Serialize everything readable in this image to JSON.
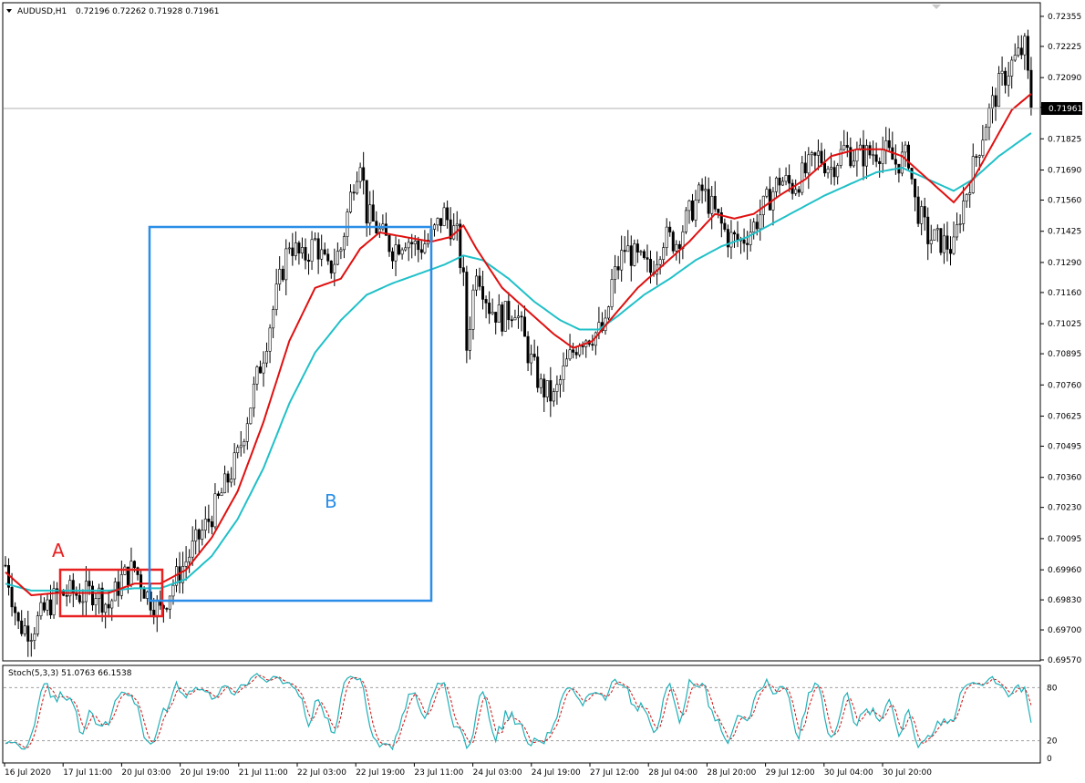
{
  "header": {
    "symbol": "AUDUSD,H1",
    "ohlc": "0.72196 0.72262 0.71928 0.71961"
  },
  "stoch_header": "Stoch(5,3,3) 51.0763 66.1538",
  "current_price_label": "0.71961",
  "annotations": {
    "a": "A",
    "b": "B"
  },
  "colors": {
    "ma_fast": "#e01010",
    "ma_slow": "#20c0c8",
    "box_a": "#e82020",
    "box_b": "#2a8ee8",
    "stoch_main": "#20b0b8",
    "stoch_signal": "#d01010",
    "candle": "#000000"
  },
  "chart_data": {
    "type": "candlestick",
    "symbol": "AUDUSD",
    "timeframe": "H1",
    "ylim": [
      0.6957,
      0.7241
    ],
    "y_ticks": [
      "0.72355",
      "0.72225",
      "0.72090",
      "0.71961",
      "0.71825",
      "0.71690",
      "0.71560",
      "0.71425",
      "0.71290",
      "0.71160",
      "0.71025",
      "0.70895",
      "0.70760",
      "0.70625",
      "0.70495",
      "0.70360",
      "0.70230",
      "0.70095",
      "0.69960",
      "0.69830",
      "0.69700",
      "0.69570"
    ],
    "x_labels": [
      "16 Jul 2020",
      "17 Jul 11:00",
      "20 Jul 03:00",
      "20 Jul 19:00",
      "21 Jul 11:00",
      "22 Jul 03:00",
      "22 Jul 19:00",
      "23 Jul 11:00",
      "24 Jul 03:00",
      "24 Jul 19:00",
      "27 Jul 12:00",
      "28 Jul 04:00",
      "28 Jul 20:00",
      "29 Jul 12:00",
      "30 Jul 04:00",
      "30 Jul 20:00"
    ],
    "price_path": [
      [
        0,
        0.6998
      ],
      [
        4,
        0.6972
      ],
      [
        8,
        0.697
      ],
      [
        12,
        0.6978
      ],
      [
        16,
        0.6985
      ],
      [
        20,
        0.6986
      ],
      [
        24,
        0.6985
      ],
      [
        28,
        0.6987
      ],
      [
        32,
        0.698
      ],
      [
        36,
        0.6992
      ],
      [
        40,
        0.6997
      ],
      [
        44,
        0.6985
      ],
      [
        48,
        0.6978
      ],
      [
        52,
        0.699
      ],
      [
        56,
        0.7
      ],
      [
        60,
        0.701
      ],
      [
        64,
        0.702
      ],
      [
        68,
        0.7032
      ],
      [
        72,
        0.7045
      ],
      [
        76,
        0.7068
      ],
      [
        80,
        0.709
      ],
      [
        84,
        0.7115
      ],
      [
        88,
        0.7138
      ],
      [
        92,
        0.713
      ],
      [
        96,
        0.7138
      ],
      [
        100,
        0.7125
      ],
      [
        104,
        0.7135
      ],
      [
        108,
        0.7165
      ],
      [
        110,
        0.7175
      ],
      [
        112,
        0.715
      ],
      [
        116,
        0.7142
      ],
      [
        120,
        0.7135
      ],
      [
        124,
        0.714
      ],
      [
        128,
        0.7135
      ],
      [
        132,
        0.714
      ],
      [
        136,
        0.715
      ],
      [
        140,
        0.714
      ],
      [
        142,
        0.712
      ],
      [
        143,
        0.7092
      ],
      [
        146,
        0.7128
      ],
      [
        150,
        0.711
      ],
      [
        154,
        0.7105
      ],
      [
        158,
        0.711
      ],
      [
        162,
        0.709
      ],
      [
        166,
        0.7075
      ],
      [
        170,
        0.707
      ],
      [
        174,
        0.7085
      ],
      [
        178,
        0.7096
      ],
      [
        182,
        0.7098
      ],
      [
        186,
        0.71
      ],
      [
        188,
        0.712
      ],
      [
        192,
        0.7135
      ],
      [
        196,
        0.713
      ],
      [
        200,
        0.7125
      ],
      [
        204,
        0.714
      ],
      [
        208,
        0.7138
      ],
      [
        212,
        0.715
      ],
      [
        216,
        0.716
      ],
      [
        220,
        0.715
      ],
      [
        224,
        0.714
      ],
      [
        228,
        0.7138
      ],
      [
        232,
        0.7145
      ],
      [
        236,
        0.7155
      ],
      [
        240,
        0.7165
      ],
      [
        244,
        0.7162
      ],
      [
        248,
        0.7168
      ],
      [
        252,
        0.7175
      ],
      [
        256,
        0.717
      ],
      [
        260,
        0.7178
      ],
      [
        264,
        0.7175
      ],
      [
        268,
        0.7176
      ],
      [
        272,
        0.7178
      ],
      [
        276,
        0.7172
      ],
      [
        280,
        0.7175
      ],
      [
        282,
        0.7155
      ],
      [
        286,
        0.714
      ],
      [
        290,
        0.7138
      ],
      [
        294,
        0.7135
      ],
      [
        296,
        0.715
      ],
      [
        300,
        0.717
      ],
      [
        304,
        0.719
      ],
      [
        308,
        0.7205
      ],
      [
        312,
        0.7215
      ],
      [
        316,
        0.7222
      ],
      [
        318,
        0.7196
      ]
    ],
    "ma_fast": [
      [
        0,
        0.6995
      ],
      [
        8,
        0.6985
      ],
      [
        16,
        0.6986
      ],
      [
        24,
        0.6986
      ],
      [
        32,
        0.6986
      ],
      [
        40,
        0.699
      ],
      [
        48,
        0.699
      ],
      [
        56,
        0.6996
      ],
      [
        64,
        0.701
      ],
      [
        72,
        0.703
      ],
      [
        80,
        0.706
      ],
      [
        88,
        0.7095
      ],
      [
        96,
        0.7118
      ],
      [
        104,
        0.7122
      ],
      [
        110,
        0.7135
      ],
      [
        116,
        0.7142
      ],
      [
        124,
        0.714
      ],
      [
        132,
        0.7138
      ],
      [
        138,
        0.714
      ],
      [
        142,
        0.7145
      ],
      [
        146,
        0.7135
      ],
      [
        154,
        0.7118
      ],
      [
        162,
        0.7108
      ],
      [
        170,
        0.7098
      ],
      [
        176,
        0.7092
      ],
      [
        182,
        0.7095
      ],
      [
        188,
        0.7105
      ],
      [
        196,
        0.7118
      ],
      [
        204,
        0.7128
      ],
      [
        212,
        0.7138
      ],
      [
        220,
        0.715
      ],
      [
        226,
        0.7148
      ],
      [
        232,
        0.715
      ],
      [
        240,
        0.7158
      ],
      [
        248,
        0.7165
      ],
      [
        256,
        0.7175
      ],
      [
        264,
        0.7178
      ],
      [
        272,
        0.7178
      ],
      [
        278,
        0.7175
      ],
      [
        286,
        0.7165
      ],
      [
        294,
        0.7155
      ],
      [
        300,
        0.7165
      ],
      [
        306,
        0.718
      ],
      [
        312,
        0.7195
      ],
      [
        318,
        0.7202
      ]
    ],
    "ma_slow": [
      [
        0,
        0.699
      ],
      [
        8,
        0.6987
      ],
      [
        16,
        0.6987
      ],
      [
        24,
        0.6987
      ],
      [
        32,
        0.6987
      ],
      [
        40,
        0.6988
      ],
      [
        48,
        0.6988
      ],
      [
        56,
        0.6992
      ],
      [
        64,
        0.7002
      ],
      [
        72,
        0.7018
      ],
      [
        80,
        0.704
      ],
      [
        88,
        0.7068
      ],
      [
        96,
        0.709
      ],
      [
        104,
        0.7104
      ],
      [
        112,
        0.7115
      ],
      [
        120,
        0.712
      ],
      [
        128,
        0.7124
      ],
      [
        136,
        0.7128
      ],
      [
        142,
        0.7132
      ],
      [
        148,
        0.713
      ],
      [
        156,
        0.7122
      ],
      [
        164,
        0.7112
      ],
      [
        172,
        0.7104
      ],
      [
        178,
        0.71
      ],
      [
        184,
        0.71
      ],
      [
        190,
        0.7106
      ],
      [
        198,
        0.7115
      ],
      [
        206,
        0.7122
      ],
      [
        214,
        0.713
      ],
      [
        222,
        0.7136
      ],
      [
        230,
        0.714
      ],
      [
        238,
        0.7146
      ],
      [
        246,
        0.7152
      ],
      [
        254,
        0.7158
      ],
      [
        262,
        0.7163
      ],
      [
        270,
        0.7168
      ],
      [
        278,
        0.717
      ],
      [
        286,
        0.7165
      ],
      [
        294,
        0.716
      ],
      [
        300,
        0.7165
      ],
      [
        308,
        0.7175
      ],
      [
        318,
        0.7185
      ]
    ],
    "stoch_levels": [
      0,
      20,
      80
    ]
  }
}
